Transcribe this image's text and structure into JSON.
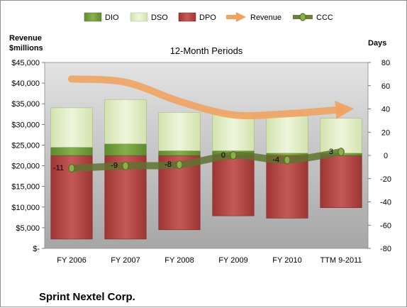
{
  "chart_data": {
    "type": "bar",
    "subtitle": "12-Month Periods",
    "company": "Sprint Nextel Corp.",
    "left_axis_title": [
      "Revenue",
      "$millions"
    ],
    "right_axis_title": "Days",
    "categories": [
      "FY 2006",
      "FY 2007",
      "FY 2008",
      "FY 2009",
      "FY 2010",
      "TTM 9-2011"
    ],
    "left_ylim": [
      0,
      45000
    ],
    "left_ticks": [
      0,
      5000,
      10000,
      15000,
      20000,
      25000,
      30000,
      35000,
      40000,
      45000
    ],
    "left_tick_labels": [
      "$-",
      "$5,000",
      "$10,000",
      "$15,000",
      "$20,000",
      "$25,000",
      "$30,000",
      "$35,000",
      "$40,000",
      "$45,000"
    ],
    "right_ylim": [
      -80,
      80
    ],
    "right_ticks": [
      -80,
      -60,
      -40,
      -20,
      0,
      20,
      40,
      60,
      80
    ],
    "right_tick_labels": [
      "-80",
      "-60",
      "-40",
      "-20",
      "0",
      "20",
      "40",
      "60",
      "80"
    ],
    "series": [
      {
        "name": "DIO",
        "color": "#77a040",
        "axis": "days",
        "values": [
          7,
          10,
          4,
          4,
          2,
          2
        ]
      },
      {
        "name": "DSO",
        "color": "#e2edc9",
        "axis": "days",
        "values": [
          34,
          38,
          33,
          32,
          32,
          30
        ]
      },
      {
        "name": "DPO",
        "color": "#b94a48",
        "axis": "days",
        "values": [
          -72,
          -72,
          -64,
          -52,
          -54,
          -45
        ]
      },
      {
        "name": "Revenue",
        "color": "#f0a25e",
        "axis": "revenue",
        "values": [
          41000,
          40200,
          35600,
          32300,
          32600,
          33600
        ]
      },
      {
        "name": "CCC",
        "color": "#6b7e3a",
        "axis": "days",
        "values": [
          -11,
          -9,
          -8,
          0,
          -4,
          3
        ],
        "labels": [
          "-11",
          "-9",
          "-8",
          "0",
          "-4",
          "3"
        ]
      }
    ],
    "legend_position": "top"
  }
}
